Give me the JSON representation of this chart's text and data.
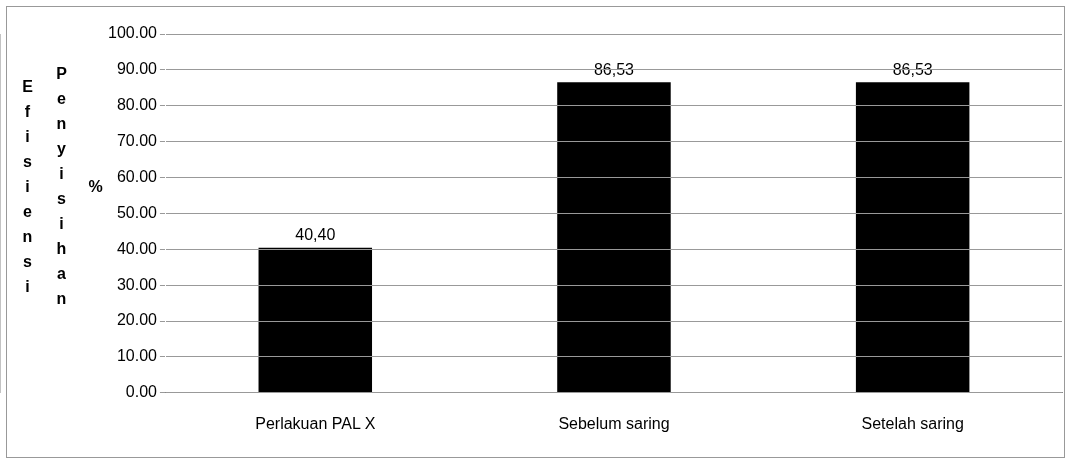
{
  "chart_data": {
    "type": "bar",
    "ylabel": "Efisiensi Penyisihan %",
    "categories": [
      "Perlakuan PAL X",
      "Sebelum saring",
      "Setelah saring"
    ],
    "values": [
      40.4,
      86.53,
      86.53
    ],
    "color": "#000000",
    "value_labels": [
      "40,40",
      "86,53",
      "86,53"
    ],
    "ylim": [
      0,
      100
    ],
    "yticks": [
      {
        "value": 0,
        "label": "0.00"
      },
      {
        "value": 10,
        "label": "10.00"
      },
      {
        "value": 20,
        "label": "20.00"
      },
      {
        "value": 30,
        "label": "30.00"
      },
      {
        "value": 40,
        "label": "40.00"
      },
      {
        "value": 50,
        "label": "50.00"
      },
      {
        "value": 60,
        "label": "60.00"
      },
      {
        "value": 70,
        "label": "70.00"
      },
      {
        "value": 80,
        "label": "80.00"
      },
      {
        "value": 90,
        "label": "90.00"
      },
      {
        "value": 100,
        "label": "100.00"
      }
    ],
    "grid": "y"
  }
}
